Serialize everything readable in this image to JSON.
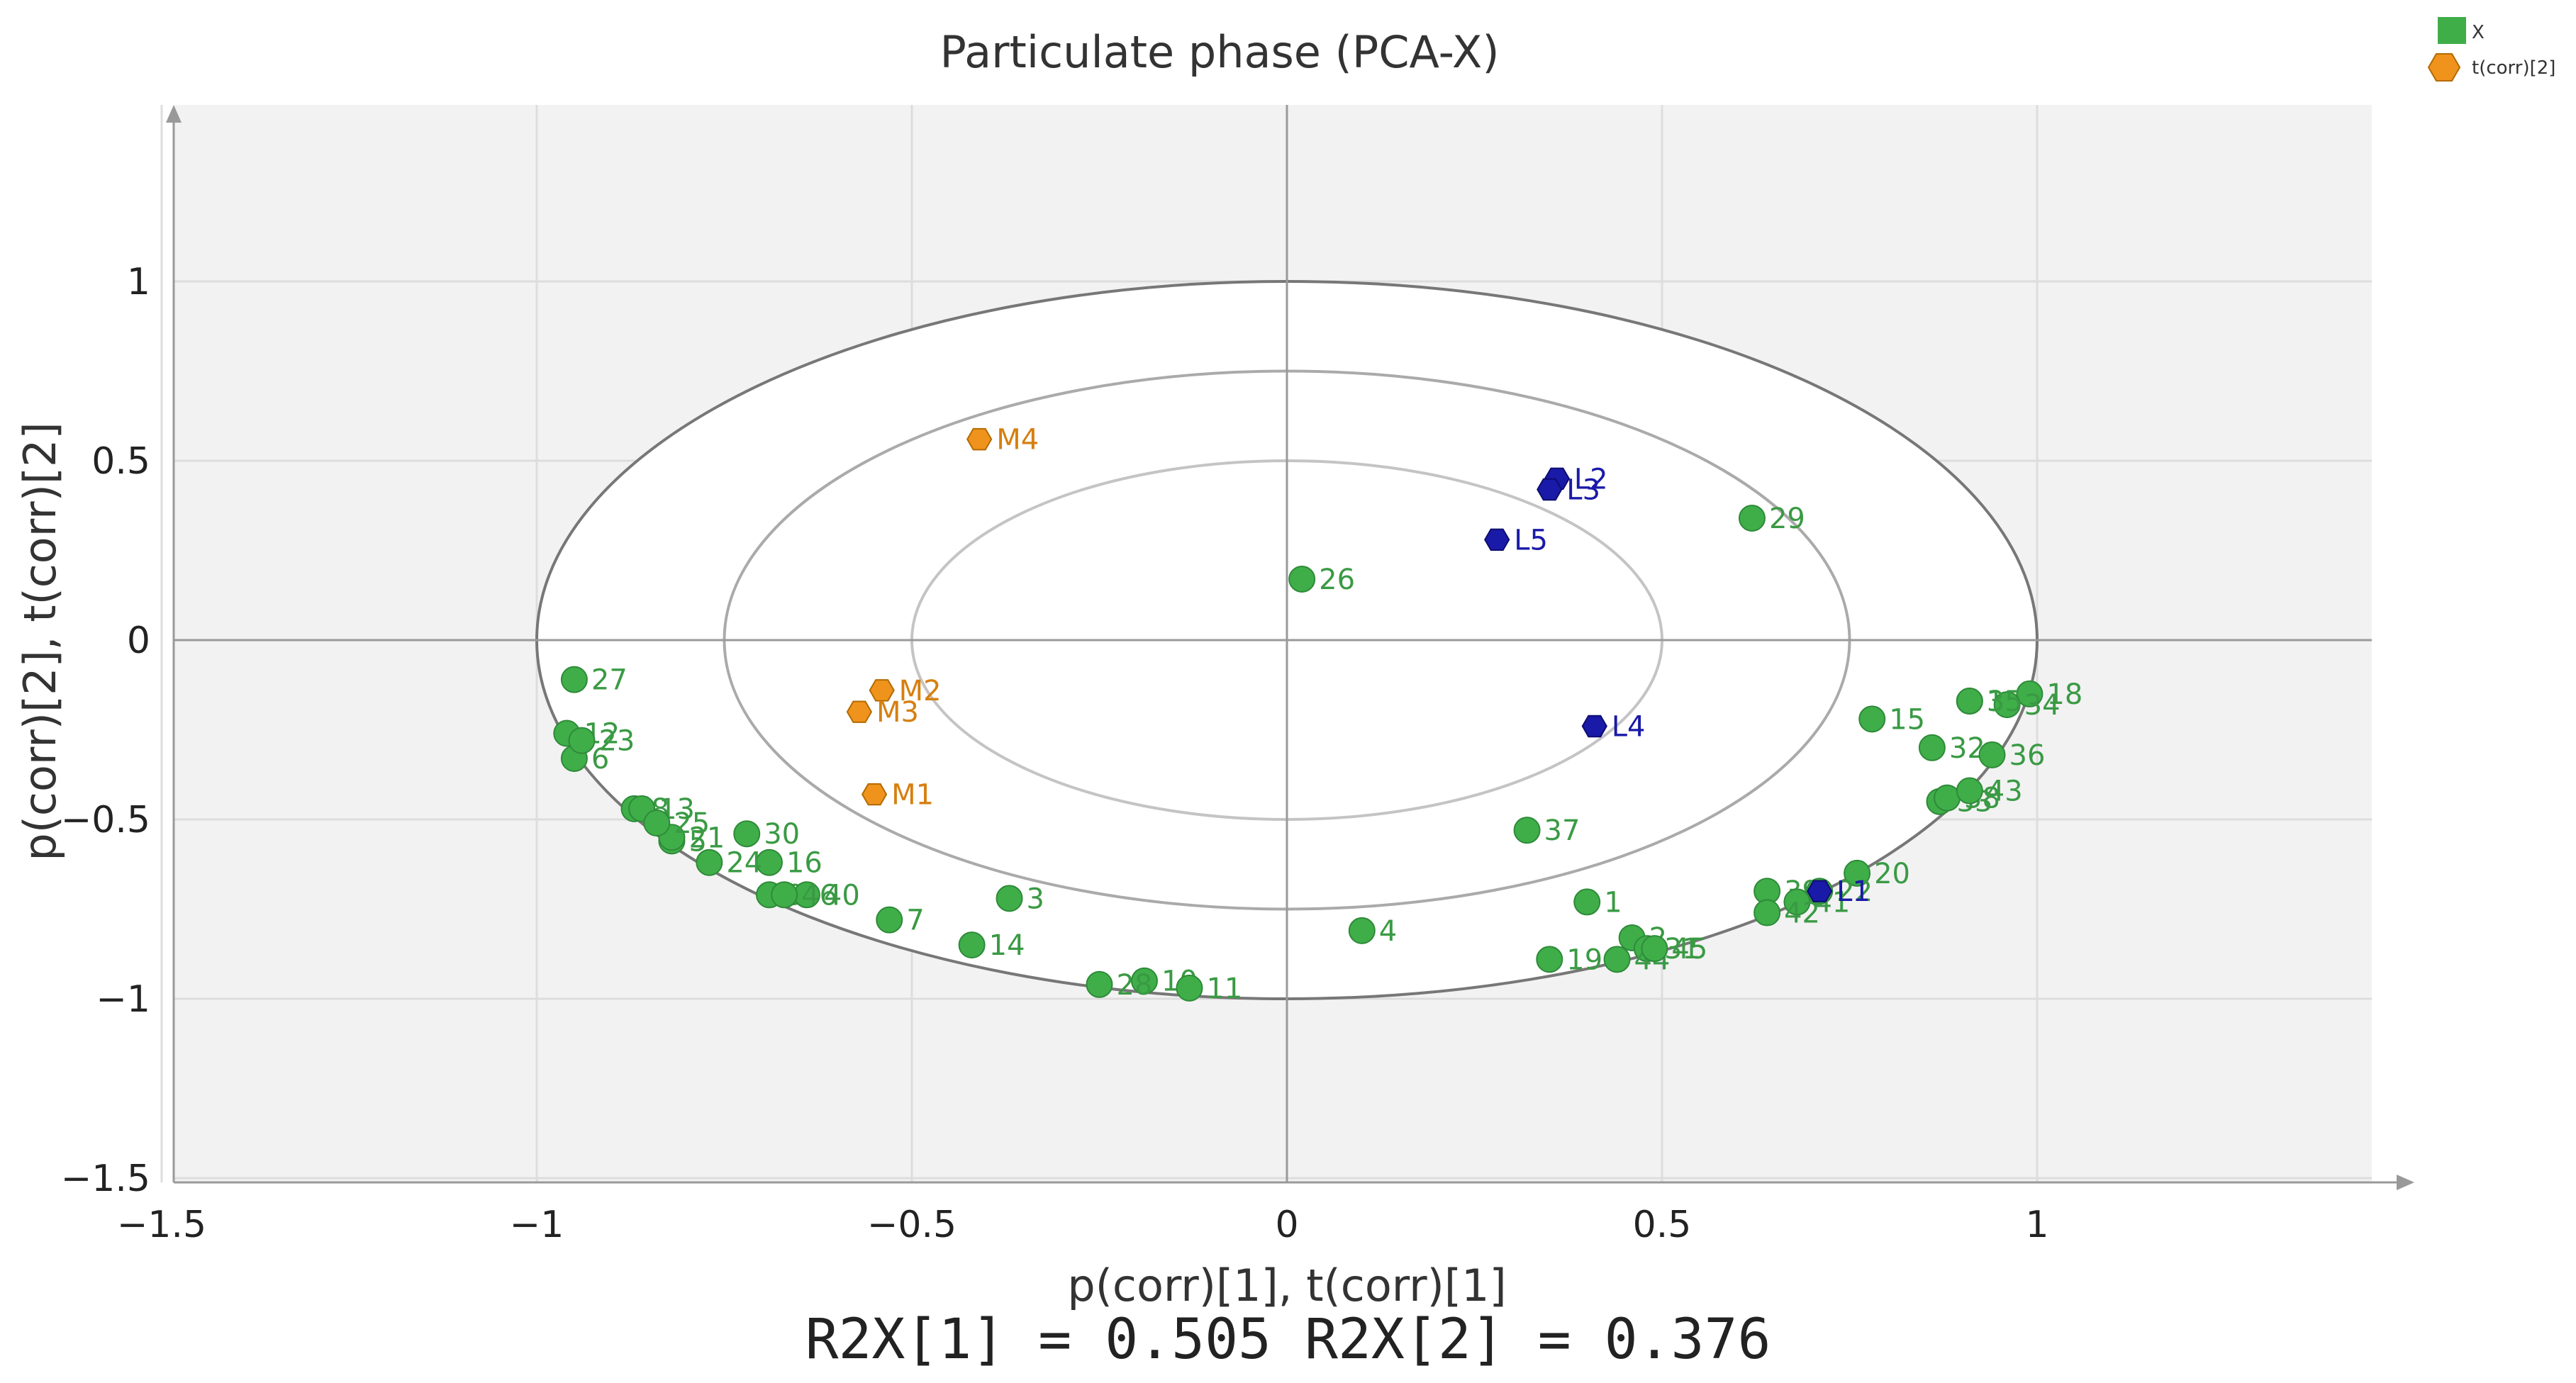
{
  "chart_data": {
    "type": "scatter",
    "title": "Particulate phase (PCA-X)",
    "xlabel": "p(corr)[1], t(corr)[1]",
    "ylabel": "p(corr)[2], t(corr)[2]",
    "xlim": [
      -1.5,
      1.5
    ],
    "ylim": [
      -1.5,
      1.5
    ],
    "xticks": [
      -1.5,
      -1,
      -0.5,
      0,
      0.5,
      1
    ],
    "xtick_labels": [
      "−1.5",
      "−1",
      "−0.5",
      "0",
      "0.5",
      "1"
    ],
    "yticks": [
      1,
      0.5,
      0,
      -0.5,
      -1,
      -1.5
    ],
    "ytick_labels": [
      "1",
      "0.5",
      "0",
      "−0.5",
      "−1",
      "−1.5"
    ],
    "grid": true,
    "ellipse_radii": [
      1.0,
      0.75,
      0.5
    ],
    "legend": {
      "position": "top-right",
      "entries": [
        {
          "name": "X",
          "marker": "square",
          "color": "#3fae49"
        },
        {
          "name": "t(corr)[2]",
          "marker": "hexagon",
          "color": "#f0931c"
        }
      ]
    },
    "colors": {
      "variables": "#3fae49",
      "scores_M": "#f0931c",
      "scores_L": "#1a1aa8"
    },
    "series": [
      {
        "name": "X",
        "marker": "circle",
        "points": [
          {
            "label": "1",
            "x": 0.4,
            "y": -0.73
          },
          {
            "label": "2",
            "x": 0.46,
            "y": -0.83
          },
          {
            "label": "3",
            "x": -0.37,
            "y": -0.72
          },
          {
            "label": "4",
            "x": 0.1,
            "y": -0.81
          },
          {
            "label": "5",
            "x": -0.82,
            "y": -0.56
          },
          {
            "label": "6",
            "x": -0.95,
            "y": -0.33
          },
          {
            "label": "7",
            "x": -0.53,
            "y": -0.78
          },
          {
            "label": "8",
            "x": -0.87,
            "y": -0.47
          },
          {
            "label": "9",
            "x": -0.69,
            "y": -0.71
          },
          {
            "label": "10",
            "x": -0.19,
            "y": -0.95
          },
          {
            "label": "11",
            "x": -0.13,
            "y": -0.97
          },
          {
            "label": "12",
            "x": -0.96,
            "y": -0.26
          },
          {
            "label": "13",
            "x": -0.86,
            "y": -0.47
          },
          {
            "label": "14",
            "x": -0.42,
            "y": -0.85
          },
          {
            "label": "15",
            "x": 0.78,
            "y": -0.22
          },
          {
            "label": "16",
            "x": -0.69,
            "y": -0.62
          },
          {
            "label": "17",
            "x": 0.91,
            "y": -0.17
          },
          {
            "label": "18",
            "x": 0.99,
            "y": -0.15
          },
          {
            "label": "19",
            "x": 0.35,
            "y": -0.89
          },
          {
            "label": "20",
            "x": 0.76,
            "y": -0.65
          },
          {
            "label": "21",
            "x": -0.82,
            "y": -0.55
          },
          {
            "label": "22",
            "x": 0.71,
            "y": -0.7
          },
          {
            "label": "23",
            "x": -0.94,
            "y": -0.28
          },
          {
            "label": "24",
            "x": -0.77,
            "y": -0.62
          },
          {
            "label": "25",
            "x": -0.84,
            "y": -0.51
          },
          {
            "label": "26",
            "x": 0.02,
            "y": 0.17
          },
          {
            "label": "27",
            "x": -0.95,
            "y": -0.11
          },
          {
            "label": "28",
            "x": -0.25,
            "y": -0.96
          },
          {
            "label": "29",
            "x": 0.62,
            "y": 0.34
          },
          {
            "label": "30",
            "x": -0.72,
            "y": -0.54
          },
          {
            "label": "31",
            "x": 0.48,
            "y": -0.86
          },
          {
            "label": "32",
            "x": 0.86,
            "y": -0.3
          },
          {
            "label": "33",
            "x": 0.87,
            "y": -0.45
          },
          {
            "label": "34",
            "x": 0.96,
            "y": -0.18
          },
          {
            "label": "35",
            "x": 0.91,
            "y": -0.17
          },
          {
            "label": "36",
            "x": 0.94,
            "y": -0.32
          },
          {
            "label": "37",
            "x": 0.32,
            "y": -0.53
          },
          {
            "label": "38",
            "x": 0.88,
            "y": -0.44
          },
          {
            "label": "39",
            "x": 0.64,
            "y": -0.7
          },
          {
            "label": "40",
            "x": -0.64,
            "y": -0.71
          },
          {
            "label": "41",
            "x": 0.68,
            "y": -0.73
          },
          {
            "label": "42",
            "x": 0.64,
            "y": -0.76
          },
          {
            "label": "43",
            "x": 0.91,
            "y": -0.42
          },
          {
            "label": "44",
            "x": 0.44,
            "y": -0.89
          },
          {
            "label": "45",
            "x": 0.49,
            "y": -0.86
          },
          {
            "label": "46",
            "x": -0.67,
            "y": -0.71
          }
        ]
      },
      {
        "name": "t(corr)[2]",
        "marker": "hexagon",
        "points": [
          {
            "label": "M1",
            "x": -0.55,
            "y": -0.43,
            "group": "M"
          },
          {
            "label": "M2",
            "x": -0.54,
            "y": -0.14,
            "group": "M"
          },
          {
            "label": "M3",
            "x": -0.57,
            "y": -0.2,
            "group": "M"
          },
          {
            "label": "M4",
            "x": -0.41,
            "y": 0.56,
            "group": "M"
          },
          {
            "label": "L1",
            "x": 0.71,
            "y": -0.7,
            "group": "L"
          },
          {
            "label": "L2",
            "x": 0.36,
            "y": 0.45,
            "group": "L"
          },
          {
            "label": "L3",
            "x": 0.35,
            "y": 0.42,
            "group": "L"
          },
          {
            "label": "L4",
            "x": 0.41,
            "y": -0.24,
            "group": "L"
          },
          {
            "label": "L5",
            "x": 0.28,
            "y": 0.28,
            "group": "L"
          }
        ]
      }
    ],
    "footer": "R2X[1] = 0.505 R2X[2] = 0.376"
  }
}
